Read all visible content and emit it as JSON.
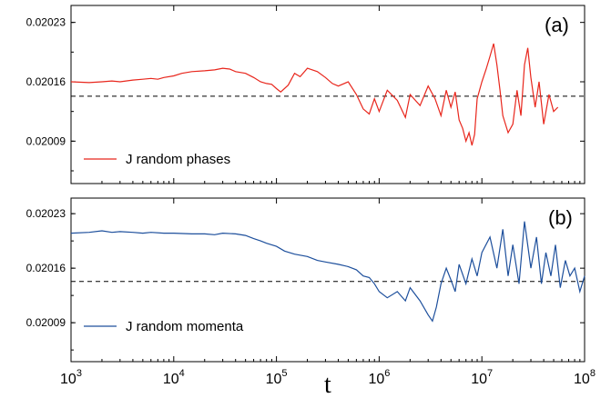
{
  "chart_data": [
    {
      "type": "line",
      "panel_label": "(a)",
      "x_scale": "log",
      "xlim": [
        1000,
        100000000
      ],
      "ylim": [
        0.02004,
        0.02025
      ],
      "yticks": [
        "0.02023",
        "0.02016",
        "0.02009"
      ],
      "ytick_values": [
        0.02023,
        0.02016,
        0.02009
      ],
      "reference_line": 0.020143,
      "legend_position": "bottom-left",
      "series": [
        {
          "name": "J random phases",
          "color": "#e8261c",
          "points": [
            [
              1000,
              0.02016
            ],
            [
              1500,
              0.020159
            ],
            [
              2000,
              0.02016
            ],
            [
              2500,
              0.020161
            ],
            [
              3000,
              0.02016
            ],
            [
              4000,
              0.020162
            ],
            [
              5000,
              0.020163
            ],
            [
              6000,
              0.020164
            ],
            [
              7000,
              0.020163
            ],
            [
              8000,
              0.020165
            ],
            [
              10000,
              0.020167
            ],
            [
              12000,
              0.02017
            ],
            [
              15000,
              0.020172
            ],
            [
              20000,
              0.020173
            ],
            [
              25000,
              0.020174
            ],
            [
              30000,
              0.020176
            ],
            [
              35000,
              0.020175
            ],
            [
              40000,
              0.020172
            ],
            [
              50000,
              0.02017
            ],
            [
              60000,
              0.020165
            ],
            [
              70000,
              0.02016
            ],
            [
              80000,
              0.020158
            ],
            [
              90000,
              0.020157
            ],
            [
              100000,
              0.020152
            ],
            [
              110000,
              0.020148
            ],
            [
              130000,
              0.020156
            ],
            [
              150000,
              0.02017
            ],
            [
              170000,
              0.020166
            ],
            [
              200000,
              0.020176
            ],
            [
              250000,
              0.020172
            ],
            [
              300000,
              0.020165
            ],
            [
              350000,
              0.020158
            ],
            [
              400000,
              0.020155
            ],
            [
              500000,
              0.02016
            ],
            [
              600000,
              0.020145
            ],
            [
              700000,
              0.020128
            ],
            [
              800000,
              0.020122
            ],
            [
              900000,
              0.02014
            ],
            [
              1000000,
              0.020125
            ],
            [
              1200000,
              0.02015
            ],
            [
              1500000,
              0.020138
            ],
            [
              1800000,
              0.020118
            ],
            [
              2000000,
              0.020145
            ],
            [
              2500000,
              0.020132
            ],
            [
              3000000,
              0.020155
            ],
            [
              3500000,
              0.02014
            ],
            [
              4000000,
              0.02012
            ],
            [
              4500000,
              0.02015
            ],
            [
              5000000,
              0.02013
            ],
            [
              5500000,
              0.020148
            ],
            [
              6000000,
              0.020115
            ],
            [
              6500000,
              0.020105
            ],
            [
              7000000,
              0.02009
            ],
            [
              7500000,
              0.0201
            ],
            [
              8000000,
              0.020085
            ],
            [
              8500000,
              0.020098
            ],
            [
              9000000,
              0.02014
            ],
            [
              10000000,
              0.02016
            ],
            [
              11000000,
              0.020175
            ],
            [
              12000000,
              0.02019
            ],
            [
              13000000,
              0.020205
            ],
            [
              14000000,
              0.02018
            ],
            [
              15000000,
              0.02015
            ],
            [
              16000000,
              0.02012
            ],
            [
              18000000,
              0.0201
            ],
            [
              20000000,
              0.02011
            ],
            [
              22000000,
              0.02015
            ],
            [
              24000000,
              0.02012
            ],
            [
              26000000,
              0.02018
            ],
            [
              28000000,
              0.0202
            ],
            [
              30000000,
              0.020165
            ],
            [
              33000000,
              0.02013
            ],
            [
              36000000,
              0.02016
            ],
            [
              40000000,
              0.02011
            ],
            [
              45000000,
              0.020145
            ],
            [
              50000000,
              0.020125
            ],
            [
              55000000,
              0.02013
            ]
          ]
        }
      ]
    },
    {
      "type": "line",
      "panel_label": "(b)",
      "x_scale": "log",
      "xlim": [
        1000,
        100000000
      ],
      "ylim": [
        0.02004,
        0.02025
      ],
      "yticks": [
        "0.02023",
        "0.02016",
        "0.02009"
      ],
      "ytick_values": [
        0.02023,
        0.02016,
        0.02009
      ],
      "reference_line": 0.020143,
      "legend_position": "bottom-left",
      "xticks": [
        "10",
        "10",
        "10",
        "10",
        "10",
        "10"
      ],
      "xtick_exponents": [
        "3",
        "4",
        "5",
        "6",
        "7",
        "8"
      ],
      "xtick_values": [
        1000,
        10000,
        100000,
        1000000,
        10000000,
        100000000
      ],
      "xlabel": "t",
      "series": [
        {
          "name": "J random momenta",
          "color": "#1d4f9c",
          "points": [
            [
              1000,
              0.020205
            ],
            [
              1500,
              0.020206
            ],
            [
              2000,
              0.020208
            ],
            [
              2500,
              0.020206
            ],
            [
              3000,
              0.020207
            ],
            [
              4000,
              0.020206
            ],
            [
              5000,
              0.020205
            ],
            [
              6000,
              0.020206
            ],
            [
              8000,
              0.020205
            ],
            [
              10000,
              0.020205
            ],
            [
              15000,
              0.020204
            ],
            [
              20000,
              0.020204
            ],
            [
              25000,
              0.020203
            ],
            [
              30000,
              0.020205
            ],
            [
              40000,
              0.020204
            ],
            [
              50000,
              0.020202
            ],
            [
              60000,
              0.020198
            ],
            [
              70000,
              0.020195
            ],
            [
              80000,
              0.020192
            ],
            [
              100000,
              0.020188
            ],
            [
              120000,
              0.020182
            ],
            [
              150000,
              0.020178
            ],
            [
              200000,
              0.020175
            ],
            [
              250000,
              0.02017
            ],
            [
              300000,
              0.020168
            ],
            [
              400000,
              0.020165
            ],
            [
              500000,
              0.020162
            ],
            [
              600000,
              0.020158
            ],
            [
              700000,
              0.02015
            ],
            [
              800000,
              0.020148
            ],
            [
              900000,
              0.02014
            ],
            [
              1000000,
              0.02013
            ],
            [
              1200000,
              0.020122
            ],
            [
              1500000,
              0.02013
            ],
            [
              1800000,
              0.020118
            ],
            [
              2000000,
              0.020135
            ],
            [
              2500000,
              0.020118
            ],
            [
              3000000,
              0.0201
            ],
            [
              3300000,
              0.020092
            ],
            [
              3600000,
              0.02011
            ],
            [
              4000000,
              0.02014
            ],
            [
              4500000,
              0.02016
            ],
            [
              5000000,
              0.020145
            ],
            [
              5500000,
              0.02013
            ],
            [
              6000000,
              0.020165
            ],
            [
              7000000,
              0.02014
            ],
            [
              8000000,
              0.020172
            ],
            [
              9000000,
              0.02015
            ],
            [
              10000000,
              0.02018
            ],
            [
              12000000,
              0.0202
            ],
            [
              14000000,
              0.02016
            ],
            [
              16000000,
              0.02021
            ],
            [
              18000000,
              0.02015
            ],
            [
              20000000,
              0.02019
            ],
            [
              23000000,
              0.02014
            ],
            [
              26000000,
              0.02022
            ],
            [
              30000000,
              0.02016
            ],
            [
              34000000,
              0.0202
            ],
            [
              38000000,
              0.02014
            ],
            [
              42000000,
              0.02018
            ],
            [
              47000000,
              0.02015
            ],
            [
              52000000,
              0.02019
            ],
            [
              58000000,
              0.020135
            ],
            [
              65000000,
              0.02017
            ],
            [
              72000000,
              0.02015
            ],
            [
              80000000,
              0.02016
            ],
            [
              90000000,
              0.02013
            ],
            [
              100000000,
              0.02015
            ]
          ]
        }
      ]
    }
  ]
}
